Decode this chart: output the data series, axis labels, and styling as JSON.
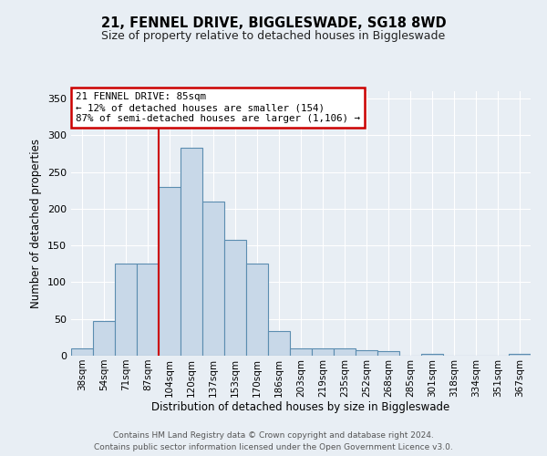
{
  "title": "21, FENNEL DRIVE, BIGGLESWADE, SG18 8WD",
  "subtitle": "Size of property relative to detached houses in Biggleswade",
  "xlabel": "Distribution of detached houses by size in Biggleswade",
  "ylabel": "Number of detached properties",
  "categories": [
    "38sqm",
    "54sqm",
    "71sqm",
    "87sqm",
    "104sqm",
    "120sqm",
    "137sqm",
    "153sqm",
    "170sqm",
    "186sqm",
    "203sqm",
    "219sqm",
    "235sqm",
    "252sqm",
    "268sqm",
    "285sqm",
    "301sqm",
    "318sqm",
    "334sqm",
    "351sqm",
    "367sqm"
  ],
  "values": [
    10,
    47,
    125,
    125,
    230,
    283,
    210,
    158,
    125,
    33,
    10,
    10,
    10,
    8,
    6,
    0,
    3,
    0,
    0,
    0,
    3
  ],
  "bar_color": "#c8d8e8",
  "bar_edge_color": "#5b8db0",
  "red_line_color": "#cc0000",
  "red_line_x": 3.5,
  "annotation_text": "21 FENNEL DRIVE: 85sqm\n← 12% of detached houses are smaller (154)\n87% of semi-detached houses are larger (1,106) →",
  "annotation_box_color": "#ffffff",
  "annotation_box_edge": "#cc0000",
  "background_color": "#e8eef4",
  "plot_background": "#e8eef4",
  "grid_color": "#ffffff",
  "ylim": [
    0,
    360
  ],
  "yticks": [
    0,
    50,
    100,
    150,
    200,
    250,
    300,
    350
  ],
  "footer_line1": "Contains HM Land Registry data © Crown copyright and database right 2024.",
  "footer_line2": "Contains public sector information licensed under the Open Government Licence v3.0."
}
